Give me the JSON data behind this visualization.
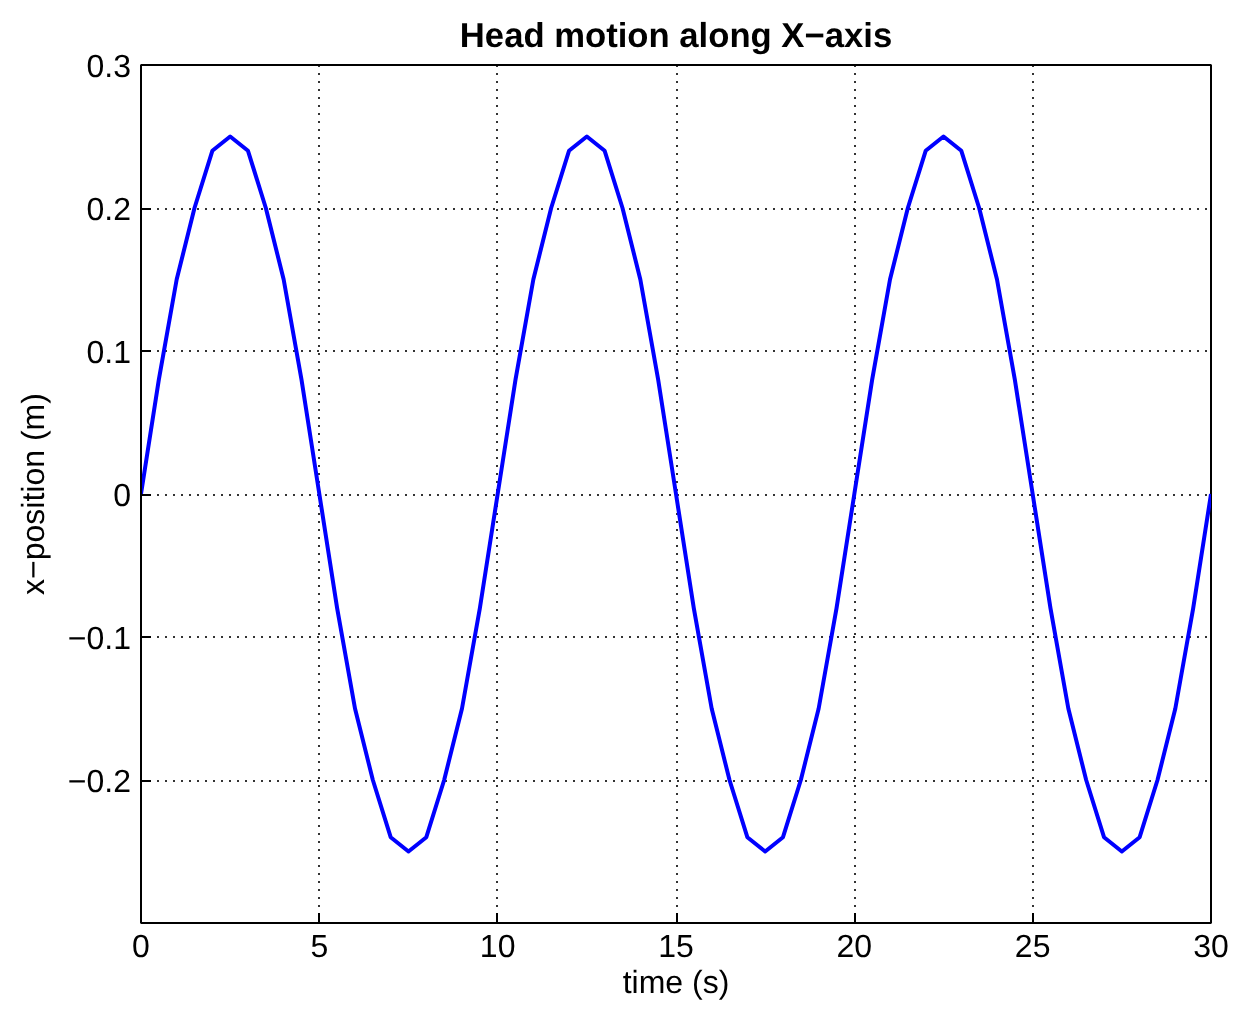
{
  "chart_data": {
    "type": "line",
    "title": "Head motion along X−axis",
    "xlabel": "time (s)",
    "ylabel": "x−position (m)",
    "x": [
      0,
      0.5,
      1,
      1.5,
      2,
      2.5,
      3,
      3.5,
      4,
      4.5,
      5,
      5.5,
      6,
      6.5,
      7,
      7.5,
      8,
      8.5,
      9,
      9.5,
      10,
      10.5,
      11,
      11.5,
      12,
      12.5,
      13,
      13.5,
      14,
      14.5,
      15,
      15.5,
      16,
      16.5,
      17,
      17.5,
      18,
      18.5,
      19,
      19.5,
      20,
      20.5,
      21,
      21.5,
      22,
      22.5,
      23,
      23.5,
      24,
      24.5,
      25,
      25.5,
      26,
      26.5,
      27,
      27.5,
      28,
      28.5,
      29,
      29.5,
      30
    ],
    "series": [
      {
        "color": "#0000ff",
        "values": [
          0,
          0.08,
          0.15,
          0.2,
          0.24,
          0.25,
          0.24,
          0.2,
          0.15,
          0.08,
          0,
          -0.08,
          -0.15,
          -0.2,
          -0.24,
          -0.25,
          -0.24,
          -0.2,
          -0.15,
          -0.08,
          0,
          0.08,
          0.15,
          0.2,
          0.24,
          0.25,
          0.24,
          0.2,
          0.15,
          0.08,
          0,
          -0.08,
          -0.15,
          -0.2,
          -0.24,
          -0.25,
          -0.24,
          -0.2,
          -0.15,
          -0.08,
          0,
          0.08,
          0.15,
          0.2,
          0.24,
          0.25,
          0.24,
          0.2,
          0.15,
          0.08,
          0,
          -0.08,
          -0.15,
          -0.2,
          -0.24,
          -0.25,
          -0.24,
          -0.2,
          -0.15,
          -0.08,
          0
        ]
      }
    ],
    "xlim": [
      0,
      30
    ],
    "ylim": [
      -0.3,
      0.3
    ],
    "xticks": [
      0,
      5,
      10,
      15,
      20,
      25,
      30
    ],
    "yticks": [
      {
        "value": -0.2,
        "label": "−0.2"
      },
      {
        "value": -0.1,
        "label": "−0.1"
      },
      0,
      0.1,
      0.2,
      0.3
    ],
    "grid": true,
    "marker": "none",
    "line_style": "solid"
  }
}
